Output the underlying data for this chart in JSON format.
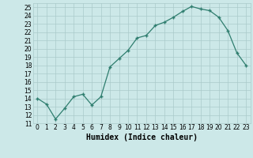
{
  "x": [
    0,
    1,
    2,
    3,
    4,
    5,
    6,
    7,
    8,
    9,
    10,
    11,
    12,
    13,
    14,
    15,
    16,
    17,
    18,
    19,
    20,
    21,
    22,
    23
  ],
  "y": [
    14.0,
    13.3,
    11.5,
    12.8,
    14.2,
    14.5,
    13.2,
    14.2,
    17.8,
    18.8,
    19.8,
    21.3,
    21.6,
    22.8,
    23.2,
    23.8,
    24.5,
    25.1,
    24.8,
    24.6,
    23.8,
    22.2,
    19.5,
    18.0
  ],
  "line_color": "#2e7d6e",
  "marker": "+",
  "markersize": 3.5,
  "linewidth": 0.9,
  "markeredgewidth": 1.0,
  "xlabel": "Humidex (Indice chaleur)",
  "xlim": [
    -0.5,
    23.5
  ],
  "ylim": [
    11,
    25.5
  ],
  "yticks": [
    11,
    12,
    13,
    14,
    15,
    16,
    17,
    18,
    19,
    20,
    21,
    22,
    23,
    24,
    25
  ],
  "xticks": [
    0,
    1,
    2,
    3,
    4,
    5,
    6,
    7,
    8,
    9,
    10,
    11,
    12,
    13,
    14,
    15,
    16,
    17,
    18,
    19,
    20,
    21,
    22,
    23
  ],
  "bg_color": "#cce8e8",
  "grid_color": "#aacaca",
  "tick_label_fontsize": 5.5,
  "xlabel_fontsize": 7,
  "xlabel_bold": true
}
